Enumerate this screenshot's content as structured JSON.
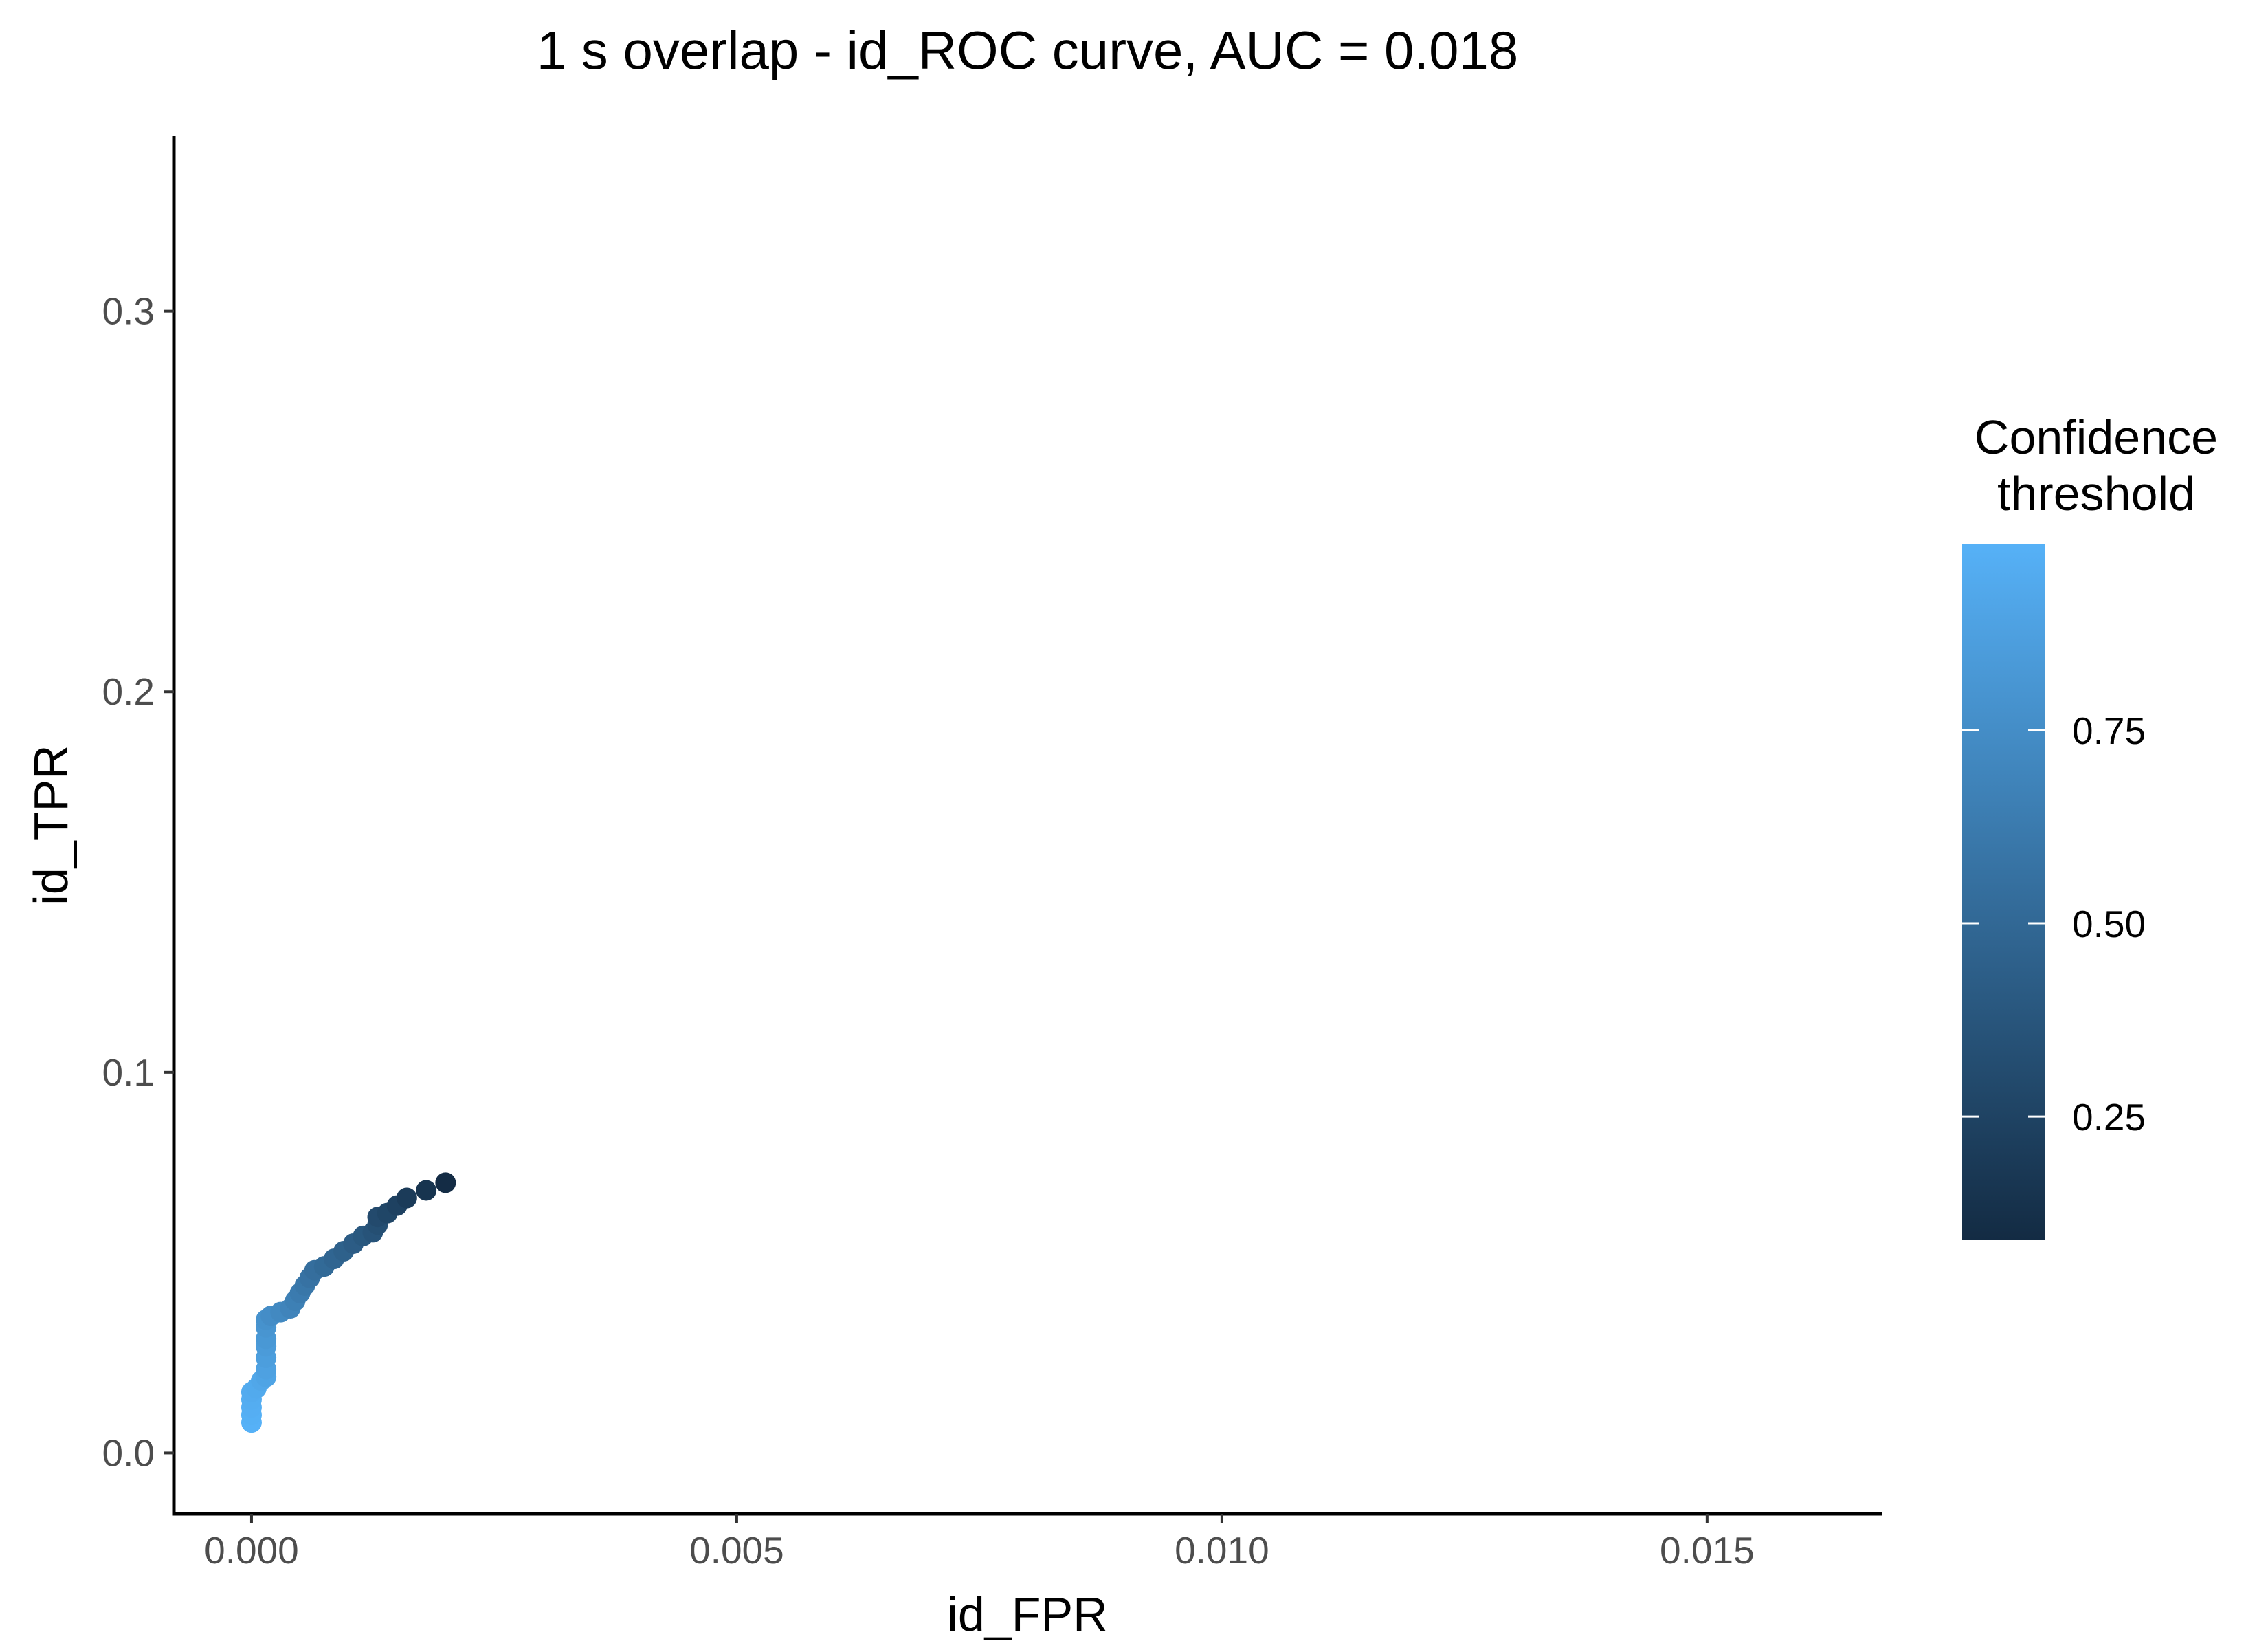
{
  "chart_data": {
    "type": "scatter",
    "title": "1 s overlap - id_ROC curve, AUC = 0.018",
    "xlabel": "id_FPR",
    "ylabel": "id_TPR",
    "xlim": [
      -0.0008,
      0.0168
    ],
    "ylim": [
      -0.016,
      0.346
    ],
    "x_ticks": [
      0.0,
      0.005,
      0.01,
      0.015
    ],
    "x_tick_labels": [
      "0.000",
      "0.005",
      "0.010",
      "0.015"
    ],
    "y_ticks": [
      0.0,
      0.1,
      0.2,
      0.3
    ],
    "y_tick_labels": [
      "0.0",
      "0.1",
      "0.2",
      "0.3"
    ],
    "grid": false,
    "legend": {
      "title": [
        "Confidence",
        "threshold"
      ],
      "placement": "right",
      "range": [
        0.09,
        0.99
      ],
      "ticks": [
        0.25,
        0.5,
        0.75
      ],
      "tick_labels": [
        "0.25",
        "0.50",
        "0.75"
      ],
      "color_low": "#132B43",
      "color_high": "#56B1F7"
    },
    "points": [
      {
        "x": 0.0,
        "y": 0.008,
        "c": 0.99
      },
      {
        "x": 0.0,
        "y": 0.01,
        "c": 0.98
      },
      {
        "x": 0.0,
        "y": 0.012,
        "c": 0.97
      },
      {
        "x": 0.0,
        "y": 0.014,
        "c": 0.96
      },
      {
        "x": 0.0,
        "y": 0.016,
        "c": 0.95
      },
      {
        "x": 5e-05,
        "y": 0.017,
        "c": 0.94
      },
      {
        "x": 0.0001,
        "y": 0.019,
        "c": 0.92
      },
      {
        "x": 0.00015,
        "y": 0.02,
        "c": 0.9
      },
      {
        "x": 0.00015,
        "y": 0.022,
        "c": 0.88
      },
      {
        "x": 0.00015,
        "y": 0.025,
        "c": 0.86
      },
      {
        "x": 0.00015,
        "y": 0.028,
        "c": 0.84
      },
      {
        "x": 0.00015,
        "y": 0.03,
        "c": 0.82
      },
      {
        "x": 0.00015,
        "y": 0.033,
        "c": 0.8
      },
      {
        "x": 0.00015,
        "y": 0.035,
        "c": 0.78
      },
      {
        "x": 0.0002,
        "y": 0.036,
        "c": 0.75
      },
      {
        "x": 0.0003,
        "y": 0.037,
        "c": 0.72
      },
      {
        "x": 0.0004,
        "y": 0.038,
        "c": 0.69
      },
      {
        "x": 0.00045,
        "y": 0.04,
        "c": 0.66
      },
      {
        "x": 0.0005,
        "y": 0.042,
        "c": 0.63
      },
      {
        "x": 0.00055,
        "y": 0.044,
        "c": 0.6
      },
      {
        "x": 0.0006,
        "y": 0.046,
        "c": 0.57
      },
      {
        "x": 0.00065,
        "y": 0.048,
        "c": 0.54
      },
      {
        "x": 0.00075,
        "y": 0.049,
        "c": 0.51
      },
      {
        "x": 0.00085,
        "y": 0.051,
        "c": 0.48
      },
      {
        "x": 0.00095,
        "y": 0.053,
        "c": 0.45
      },
      {
        "x": 0.00105,
        "y": 0.055,
        "c": 0.42
      },
      {
        "x": 0.00115,
        "y": 0.057,
        "c": 0.39
      },
      {
        "x": 0.00125,
        "y": 0.058,
        "c": 0.36
      },
      {
        "x": 0.0013,
        "y": 0.06,
        "c": 0.33
      },
      {
        "x": 0.0013,
        "y": 0.062,
        "c": 0.3
      },
      {
        "x": 0.0014,
        "y": 0.063,
        "c": 0.27
      },
      {
        "x": 0.0015,
        "y": 0.065,
        "c": 0.24
      },
      {
        "x": 0.0016,
        "y": 0.067,
        "c": 0.2
      },
      {
        "x": 0.0018,
        "y": 0.069,
        "c": 0.15
      },
      {
        "x": 0.002,
        "y": 0.071,
        "c": 0.1
      }
    ]
  }
}
